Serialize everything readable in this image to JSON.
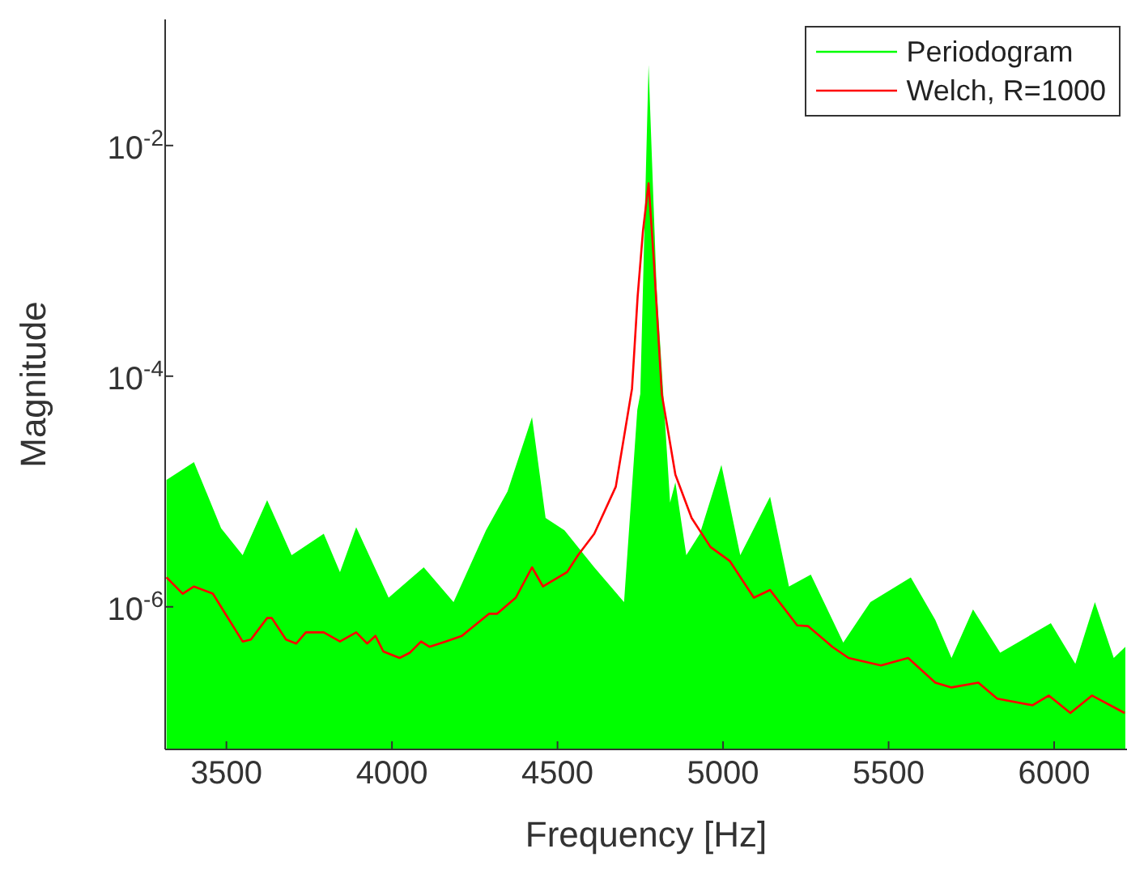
{
  "chart_data": {
    "type": "line",
    "xlabel": "Frequency [Hz]",
    "ylabel": "Magnitude",
    "log": "y",
    "grid": false,
    "legend": "top right",
    "xlim": [
      3315,
      6220
    ],
    "ylim": [
      5.8e-08,
      0.124
    ],
    "xticks": [
      3500,
      4000,
      4500,
      5000,
      5500,
      6000
    ],
    "yticks": [
      {
        "value": 1e-06,
        "label": "10$^{-6}$"
      },
      {
        "value": 0.0001,
        "label": "10$^{-4}$"
      },
      {
        "value": 0.01,
        "label": "10$^{-2}$"
      }
    ],
    "series": [
      {
        "name": "Periodogram",
        "type": "area",
        "color": "#00ff00",
        "x": [
          3319,
          3402,
          3484,
          3549,
          3623,
          3697,
          3794,
          3843,
          3892,
          3990,
          4096,
          4186,
          4284,
          4349,
          4423,
          4464,
          4521,
          4611,
          4701,
          4741,
          4750,
          4775,
          4799,
          4840,
          4856,
          4889,
          4930,
          4995,
          5052,
          5142,
          5199,
          5265,
          5363,
          5445,
          5567,
          5641,
          5690,
          5755,
          5837,
          5990,
          6064,
          6123,
          6180,
          6215
        ],
        "values": [
          1.26e-05,
          1.8e-05,
          4.8e-06,
          2.8e-06,
          8.4e-06,
          2.8e-06,
          4.3e-06,
          2e-06,
          4.9e-06,
          1.2e-06,
          2.2e-06,
          1.1e-06,
          4.6e-06,
          1e-05,
          4.4e-05,
          5.9e-06,
          4.6e-06,
          2.2e-06,
          1.1e-06,
          5.1e-05,
          7e-05,
          0.05,
          0.0006,
          8e-06,
          1.2e-05,
          2.8e-06,
          4.3e-06,
          1.7e-05,
          2.8e-06,
          9e-06,
          1.5e-06,
          1.9e-06,
          4.9e-07,
          1.1e-06,
          1.8e-06,
          7.7e-07,
          3.6e-07,
          9.5e-07,
          4e-07,
          7.2e-07,
          3.2e-07,
          1.1e-06,
          3.6e-07,
          4.5e-07
        ]
      },
      {
        "name": "Welch, R=1000",
        "color": "#ff0000",
        "x": [
          3319,
          3368,
          3402,
          3459,
          3549,
          3574,
          3623,
          3637,
          3680,
          3711,
          3740,
          3794,
          3843,
          3892,
          3925,
          3950,
          3974,
          4023,
          4054,
          4088,
          4113,
          4162,
          4211,
          4293,
          4317,
          4374,
          4423,
          4456,
          4529,
          4562,
          4611,
          4676,
          4725,
          4742,
          4758,
          4775,
          4791,
          4815,
          4856,
          4905,
          4962,
          5020,
          5093,
          5142,
          5224,
          5257,
          5330,
          5379,
          5477,
          5510,
          5559,
          5641,
          5690,
          5771,
          5828,
          5935,
          5984,
          6049,
          6114,
          6213
        ],
        "values": [
          1.8e-06,
          1.3e-06,
          1.5e-06,
          1.3e-06,
          5e-07,
          5.2e-07,
          8e-07,
          8e-07,
          5.2e-07,
          4.8e-07,
          6e-07,
          6e-07,
          5e-07,
          6e-07,
          4.8e-07,
          5.6e-07,
          4.1e-07,
          3.6e-07,
          4e-07,
          5e-07,
          4.5e-07,
          5e-07,
          5.6e-07,
          8.7e-07,
          8.7e-07,
          1.2e-06,
          2.2e-06,
          1.5e-06,
          2e-06,
          2.8e-06,
          4.3e-06,
          1.1e-05,
          7.8e-05,
          0.00049,
          0.0018,
          0.0047,
          0.001,
          7e-05,
          1.4e-05,
          5.9e-06,
          3.3e-06,
          2.5e-06,
          1.2e-06,
          1.4e-06,
          6.9e-07,
          6.8e-07,
          4.5e-07,
          3.6e-07,
          3.1e-07,
          3.3e-07,
          3.6e-07,
          2.2e-07,
          2e-07,
          2.2e-07,
          1.6e-07,
          1.4e-07,
          1.7e-07,
          1.2e-07,
          1.7e-07,
          1.2e-07
        ]
      }
    ]
  }
}
